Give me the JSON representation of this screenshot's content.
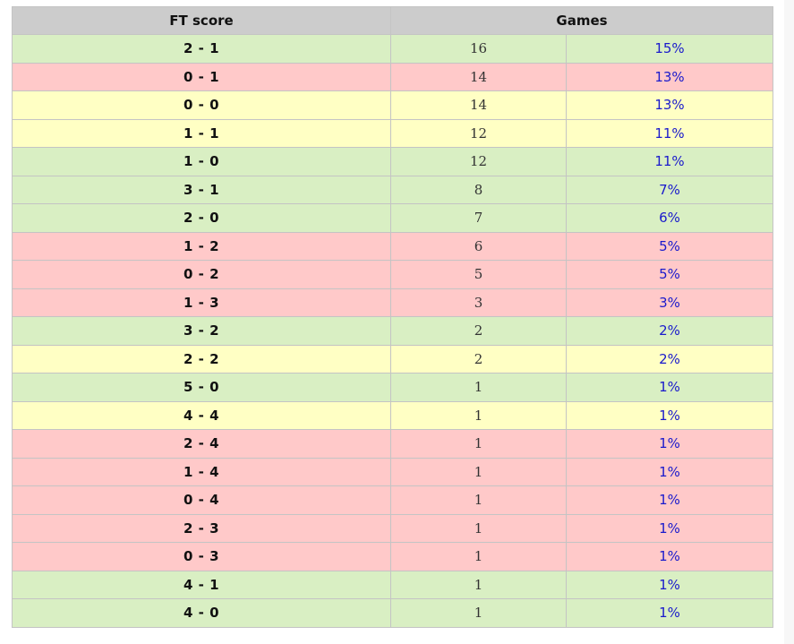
{
  "table": {
    "headers": {
      "score": "FT score",
      "games": "Games"
    },
    "colors": {
      "win": "#d9efc3",
      "loss": "#ffc9c9",
      "draw": "#ffffc4",
      "header": "#cccccc",
      "percent_text": "#1a1acc"
    },
    "rows": [
      {
        "score": "2 - 1",
        "games": "16",
        "percent": "15%",
        "result": "win"
      },
      {
        "score": "0 - 1",
        "games": "14",
        "percent": "13%",
        "result": "loss"
      },
      {
        "score": "0 - 0",
        "games": "14",
        "percent": "13%",
        "result": "draw"
      },
      {
        "score": "1 - 1",
        "games": "12",
        "percent": "11%",
        "result": "draw"
      },
      {
        "score": "1 - 0",
        "games": "12",
        "percent": "11%",
        "result": "win"
      },
      {
        "score": "3 - 1",
        "games": "8",
        "percent": "7%",
        "result": "win"
      },
      {
        "score": "2 - 0",
        "games": "7",
        "percent": "6%",
        "result": "win"
      },
      {
        "score": "1 - 2",
        "games": "6",
        "percent": "5%",
        "result": "loss"
      },
      {
        "score": "0 - 2",
        "games": "5",
        "percent": "5%",
        "result": "loss"
      },
      {
        "score": "1 - 3",
        "games": "3",
        "percent": "3%",
        "result": "loss"
      },
      {
        "score": "3 - 2",
        "games": "2",
        "percent": "2%",
        "result": "win"
      },
      {
        "score": "2 - 2",
        "games": "2",
        "percent": "2%",
        "result": "draw"
      },
      {
        "score": "5 - 0",
        "games": "1",
        "percent": "1%",
        "result": "win"
      },
      {
        "score": "4 - 4",
        "games": "1",
        "percent": "1%",
        "result": "draw"
      },
      {
        "score": "2 - 4",
        "games": "1",
        "percent": "1%",
        "result": "loss"
      },
      {
        "score": "1 - 4",
        "games": "1",
        "percent": "1%",
        "result": "loss"
      },
      {
        "score": "0 - 4",
        "games": "1",
        "percent": "1%",
        "result": "loss"
      },
      {
        "score": "2 - 3",
        "games": "1",
        "percent": "1%",
        "result": "loss"
      },
      {
        "score": "0 - 3",
        "games": "1",
        "percent": "1%",
        "result": "loss"
      },
      {
        "score": "4 - 1",
        "games": "1",
        "percent": "1%",
        "result": "win"
      },
      {
        "score": "4 - 0",
        "games": "1",
        "percent": "1%",
        "result": "win"
      }
    ]
  }
}
